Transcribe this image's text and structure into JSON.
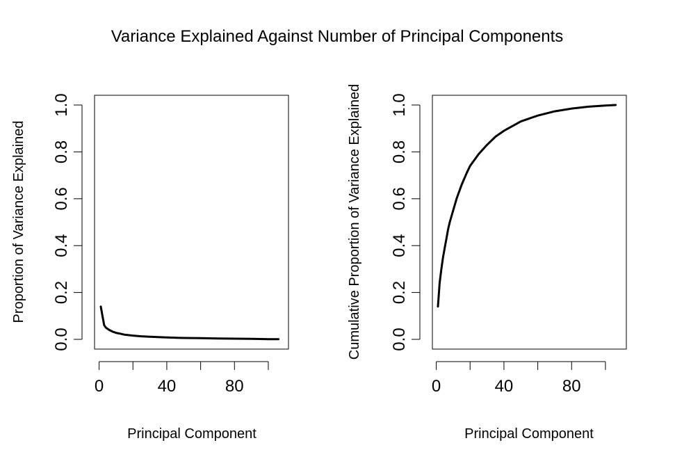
{
  "figure": {
    "title": "Variance Explained Against Number of Principal Components"
  },
  "chart_data": [
    {
      "type": "line",
      "title": "",
      "xlabel": "Principal Component",
      "ylabel": "Proportion of Variance Explained",
      "xlim": [
        1,
        106
      ],
      "ylim": [
        0,
        1
      ],
      "x_ticks": [
        0,
        20,
        40,
        60,
        80,
        100
      ],
      "x_tick_labels": [
        "0",
        "",
        "40",
        "",
        "80",
        ""
      ],
      "y_ticks": [
        0,
        0.2,
        0.4,
        0.6,
        0.8,
        1.0
      ],
      "y_tick_labels": [
        "0.0",
        "0.2",
        "0.4",
        "0.6",
        "0.8",
        "1.0"
      ],
      "grid": false,
      "series": [
        {
          "x": [
            1,
            2,
            3,
            4,
            5,
            6,
            8,
            10,
            12,
            15,
            20,
            25,
            30,
            40,
            50,
            60,
            70,
            80,
            90,
            100,
            106
          ],
          "values": [
            0.14,
            0.1,
            0.06,
            0.05,
            0.045,
            0.04,
            0.033,
            0.028,
            0.025,
            0.02,
            0.016,
            0.013,
            0.011,
            0.008,
            0.006,
            0.005,
            0.004,
            0.003,
            0.002,
            0.001,
            0.0005
          ]
        }
      ]
    },
    {
      "type": "line",
      "title": "",
      "xlabel": "Principal Component",
      "ylabel": "Cumulative Proportion of Variance Explained",
      "xlim": [
        1,
        106
      ],
      "ylim": [
        0,
        1
      ],
      "x_ticks": [
        0,
        20,
        40,
        60,
        80,
        100
      ],
      "x_tick_labels": [
        "0",
        "",
        "40",
        "",
        "80",
        ""
      ],
      "y_ticks": [
        0,
        0.2,
        0.4,
        0.6,
        0.8,
        1.0
      ],
      "y_tick_labels": [
        "0.0",
        "0.2",
        "0.4",
        "0.6",
        "0.8",
        "1.0"
      ],
      "grid": false,
      "series": [
        {
          "x": [
            1,
            2,
            3,
            4,
            5,
            6,
            7,
            8,
            10,
            12,
            15,
            18,
            20,
            25,
            30,
            35,
            40,
            45,
            50,
            60,
            70,
            80,
            90,
            100,
            106
          ],
          "values": [
            0.14,
            0.24,
            0.3,
            0.35,
            0.39,
            0.43,
            0.47,
            0.5,
            0.55,
            0.6,
            0.66,
            0.71,
            0.74,
            0.79,
            0.83,
            0.865,
            0.89,
            0.91,
            0.93,
            0.955,
            0.973,
            0.985,
            0.993,
            0.998,
            1.0
          ]
        }
      ]
    }
  ]
}
